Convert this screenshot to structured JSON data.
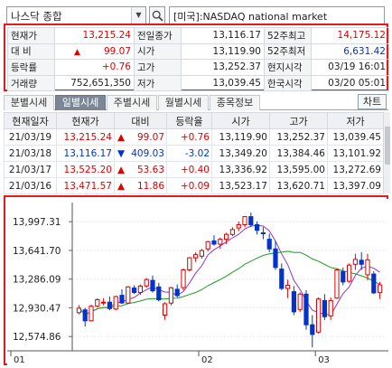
{
  "search": {
    "index_value": "나스닥 종합",
    "market_name": "[미국]:NASDAQ national market"
  },
  "quote": {
    "rows": [
      {
        "l1": "현재가",
        "v1": "13,215.24",
        "c1": "red",
        "l2": "전일종가",
        "v2": "13,116.17",
        "c2": "",
        "l3": "52주최고",
        "v3": "14,175.12",
        "c3": "red"
      },
      {
        "l1": "대 비",
        "v1": "99.07",
        "c1": "red",
        "l2": "시가",
        "v2": "13,119.90",
        "c2": "",
        "l3": "52주최저",
        "v3": "6,631.42",
        "c3": "blue"
      },
      {
        "l1": "등락률",
        "v1": "+0.76",
        "c1": "red",
        "l2": "고가",
        "v2": "13,252.37",
        "c2": "",
        "l3": "현지시각",
        "v3": "03/19 16:01",
        "c3": ""
      },
      {
        "l1": "거래량",
        "v1": "752,651,350",
        "c1": "",
        "l2": "저가",
        "v2": "13,039.45",
        "c2": "",
        "l3": "한국시각",
        "v3": "03/20 05:01",
        "c3": ""
      }
    ],
    "change_arrow": "▲"
  },
  "tabs": {
    "items": [
      "분별시세",
      "일별시세",
      "주별시세",
      "월별시세",
      "종목정보"
    ],
    "active": 1,
    "chart_button": "차트"
  },
  "daily": {
    "headers": [
      "현재일자",
      "현재가",
      "대비",
      "등락율",
      "시가",
      "고가",
      "저가"
    ],
    "rows": [
      {
        "date": "21/03/19",
        "price": "13,215.24",
        "pc": "red",
        "arrow": "▲",
        "dir": "up",
        "chg": "99.07",
        "rate": "+0.76",
        "open": "13,119.90",
        "high": "13,252.37",
        "low": "13,039.45"
      },
      {
        "date": "21/03/18",
        "price": "13,116.17",
        "pc": "blue",
        "arrow": "▼",
        "dir": "down",
        "chg": "409.03",
        "rate": "-3.02",
        "open": "13,349.20",
        "high": "13,384.46",
        "low": "13,101.92"
      },
      {
        "date": "21/03/17",
        "price": "13,525.20",
        "pc": "red",
        "arrow": "▲",
        "dir": "up",
        "chg": "53.63",
        "rate": "+0.40",
        "open": "13,336.92",
        "high": "13,595.00",
        "low": "13,272.69"
      },
      {
        "date": "21/03/16",
        "price": "13,471.57",
        "pc": "red",
        "arrow": "▲",
        "dir": "up",
        "chg": "11.86",
        "rate": "+0.09",
        "open": "13,523.17",
        "high": "13,620.71",
        "low": "13,397.09"
      }
    ]
  },
  "chart_data": {
    "type": "candlestick",
    "y_ticks": [
      "13,997.31",
      "13,641.70",
      "13,286.09",
      "12,930.47",
      "12,574.86"
    ],
    "y_tick_values": [
      13997.31,
      13641.7,
      13286.09,
      12930.47,
      12574.86
    ],
    "x_ticks": [
      "01",
      "02",
      "03"
    ],
    "x_tick_index": [
      0,
      20,
      39
    ],
    "ylim": [
      12420,
      14190
    ],
    "up_color": "#e00000",
    "down_color": "#0033cc",
    "ma_colors": [
      "#9b30c8",
      "#1f9a1f"
    ],
    "candles": [
      [
        12870,
        12965,
        12850,
        12925
      ],
      [
        12905,
        12930,
        12700,
        12770
      ],
      [
        12770,
        12970,
        12760,
        12950
      ],
      [
        12950,
        13050,
        12935,
        13030
      ],
      [
        12990,
        13050,
        12960,
        13000
      ],
      [
        13000,
        13070,
        12900,
        12920
      ],
      [
        12915,
        13080,
        12900,
        13070
      ],
      [
        13085,
        13160,
        12980,
        12990
      ],
      [
        12990,
        13200,
        12980,
        13190
      ],
      [
        13175,
        13210,
        13100,
        13120
      ],
      [
        13120,
        13220,
        13090,
        13200
      ],
      [
        13200,
        13300,
        13180,
        13280
      ],
      [
        13270,
        13330,
        13120,
        13140
      ],
      [
        13190,
        13240,
        13010,
        13030
      ],
      [
        12840,
        13000,
        12780,
        12980
      ],
      [
        12990,
        13190,
        12960,
        13180
      ],
      [
        13160,
        13220,
        13060,
        13080
      ],
      [
        13180,
        13420,
        13150,
        13400
      ],
      [
        13400,
        13560,
        13380,
        13550
      ],
      [
        13550,
        13620,
        13500,
        13590
      ],
      [
        13570,
        13660,
        13540,
        13640
      ],
      [
        13660,
        13760,
        13630,
        13750
      ],
      [
        13760,
        13830,
        13700,
        13720
      ],
      [
        13720,
        13800,
        13660,
        13780
      ],
      [
        13780,
        13860,
        13720,
        13840
      ],
      [
        13840,
        13930,
        13820,
        13900
      ],
      [
        13920,
        14000,
        13880,
        13960
      ],
      [
        13960,
        14070,
        13930,
        14060
      ],
      [
        14060,
        14110,
        13930,
        13960
      ],
      [
        13960,
        14000,
        13840,
        13890
      ],
      [
        13860,
        13930,
        13780,
        13850
      ],
      [
        13780,
        13850,
        13620,
        13660
      ],
      [
        13660,
        13760,
        13400,
        13430
      ],
      [
        13410,
        13480,
        13150,
        13170
      ],
      [
        13170,
        13280,
        13050,
        13210
      ],
      [
        13130,
        13200,
        12840,
        12880
      ],
      [
        12910,
        13120,
        12880,
        13100
      ],
      [
        13100,
        13150,
        12660,
        12720
      ],
      [
        12720,
        12840,
        12440,
        12600
      ],
      [
        12630,
        13060,
        12610,
        13040
      ],
      [
        13020,
        13100,
        12780,
        12820
      ],
      [
        12830,
        13060,
        12780,
        13020
      ],
      [
        13050,
        13420,
        13040,
        13400
      ],
      [
        13380,
        13430,
        13210,
        13250
      ],
      [
        13260,
        13480,
        13240,
        13460
      ],
      [
        13470,
        13600,
        13400,
        13530
      ],
      [
        13520,
        13620,
        13400,
        13470
      ],
      [
        13340,
        13600,
        13270,
        13525
      ],
      [
        13349,
        13384,
        13101,
        13116
      ],
      [
        13119,
        13252,
        13039,
        13215
      ]
    ]
  }
}
